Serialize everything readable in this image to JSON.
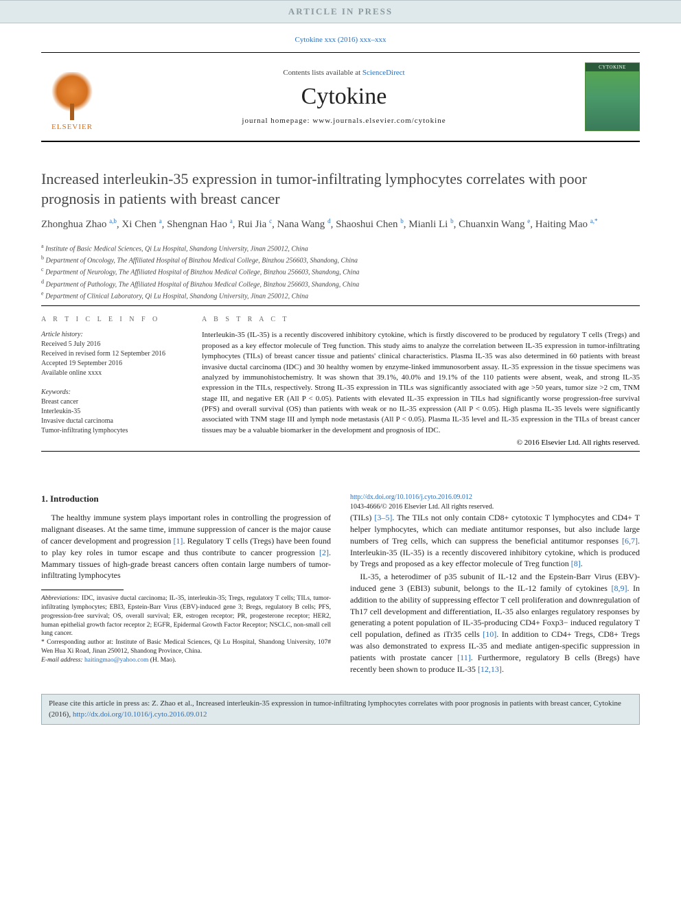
{
  "banner": {
    "in_press": "ARTICLE IN PRESS",
    "citation": "Cytokine xxx (2016) xxx–xxx"
  },
  "header": {
    "publisher_logo_text": "ELSEVIER",
    "contents_prefix": "Contents lists available at ",
    "contents_link": "ScienceDirect",
    "journal": "Cytokine",
    "homepage_label": "journal homepage: ",
    "homepage_url": "www.journals.elsevier.com/cytokine",
    "cover_title": "CYTOKINE"
  },
  "article": {
    "title": "Increased interleukin-35 expression in tumor-infiltrating lymphocytes correlates with poor prognosis in patients with breast cancer",
    "authors_html": "Zhonghua Zhao <sup>a,b</sup>, Xi Chen <sup>a</sup>, Shengnan Hao <sup>a</sup>, Rui Jia <sup>c</sup>, Nana Wang <sup>d</sup>, Shaoshui Chen <sup>b</sup>, Mianli Li <sup>b</sup>, Chuanxin Wang <sup>e</sup>, Haiting Mao <sup>a,*</sup>",
    "affiliations": [
      "a Institute of Basic Medical Sciences, Qi Lu Hospital, Shandong University, Jinan 250012, China",
      "b Department of Oncology, The Affiliated Hospital of Binzhou Medical College, Binzhou 256603, Shandong, China",
      "c Department of Neurology, The Affiliated Hospital of Binzhou Medical College, Binzhou 256603, Shandong, China",
      "d Department of Pathology, The Affiliated Hospital of Binzhou Medical College, Binzhou 256603, Shandong, China",
      "e Department of Clinical Laboratory, Qi Lu Hospital, Shandong University, Jinan 250012, China"
    ]
  },
  "info": {
    "heading": "A R T I C L E   I N F O",
    "history_label": "Article history:",
    "history_lines": [
      "Received 5 July 2016",
      "Received in revised form 12 September 2016",
      "Accepted 19 September 2016",
      "Available online xxxx"
    ],
    "keywords_label": "Keywords:",
    "keywords": [
      "Breast cancer",
      "Interleukin-35",
      "Invasive ductal carcinoma",
      "Tumor-infiltrating lymphocytes"
    ]
  },
  "abstract": {
    "heading": "A B S T R A C T",
    "text": "Interleukin-35 (IL-35) is a recently discovered inhibitory cytokine, which is firstly discovered to be produced by regulatory T cells (Tregs) and proposed as a key effector molecule of Treg function. This study aims to analyze the correlation between IL-35 expression in tumor-infiltrating lymphocytes (TILs) of breast cancer tissue and patients' clinical characteristics. Plasma IL-35 was also determined in 60 patients with breast invasive ductal carcinoma (IDC) and 30 healthy women by enzyme-linked immunosorbent assay. IL-35 expression in the tissue specimens was analyzed by immunohistochemistry. It was shown that 39.1%, 40.0% and 19.1% of the 110 patients were absent, weak, and strong IL-35 expression in the TILs, respectively. Strong IL-35 expression in TILs was significantly associated with age >50 years, tumor size >2 cm, TNM stage III, and negative ER (All P < 0.05). Patients with elevated IL-35 expression in TILs had significantly worse progression-free survival (PFS) and overall survival (OS) than patients with weak or no IL-35 expression (All P < 0.05). High plasma IL-35 levels were significantly associated with TNM stage III and lymph node metastasis (All P < 0.05). Plasma IL-35 level and IL-35 expression in the TILs of breast cancer tissues may be a valuable biomarker in the development and prognosis of IDC.",
    "copyright": "© 2016 Elsevier Ltd. All rights reserved."
  },
  "body": {
    "intro_heading": "1. Introduction",
    "p1": "The healthy immune system plays important roles in controlling the progression of malignant diseases. At the same time, immune suppression of cancer is the major cause of cancer development and progression ",
    "p1_ref1": "[1]",
    "p1b": ". Regulatory T cells (Tregs) have been found to play key roles in tumor escape and thus contribute to cancer progression ",
    "p1_ref2": "[2]",
    "p1c": ". Mammary tissues of high-grade breast cancers often contain large numbers of tumor-infiltrating lymphocytes",
    "p2a": "(TILs) ",
    "p2_ref1": "[3–5]",
    "p2b": ". The TILs not only contain CD8+ cytotoxic T lymphocytes and CD4+ T helper lymphocytes, which can mediate antitumor responses, but also include large numbers of Treg cells, which can suppress the beneficial antitumor responses ",
    "p2_ref2": "[6,7]",
    "p2c": ". Interleukin-35 (IL-35) is a recently discovered inhibitory cytokine, which is produced by Tregs and proposed as a key effector molecule of Treg function ",
    "p2_ref3": "[8]",
    "p2d": ".",
    "p3a": "IL-35, a heterodimer of p35 subunit of IL-12 and the Epstein-Barr Virus (EBV)-induced gene 3 (EBI3) subunit, belongs to the IL-12 family of cytokines ",
    "p3_ref1": "[8,9]",
    "p3b": ". In addition to the ability of suppressing effector T cell proliferation and downregulation of Th17 cell development and differentiation, IL-35 also enlarges regulatory responses by generating a potent population of IL-35-producing CD4+ Foxp3− induced regulatory T cell population, defined as iTr35 cells ",
    "p3_ref2": "[10]",
    "p3c": ". In addition to CD4+ Tregs, CD8+ Tregs was also demonstrated to express IL-35 and mediate antigen-specific suppression in patients with prostate cancer ",
    "p3_ref3": "[11]",
    "p3d": ". Furthermore, regulatory B cells (Bregs) have recently been shown to produce IL-35 ",
    "p3_ref4": "[12,13]",
    "p3e": "."
  },
  "footnotes": {
    "abbrev_label": "Abbreviations:",
    "abbrev_text": " IDC, invasive ductal carcinoma; IL-35, interleukin-35; Tregs, regulatory T cells; TILs, tumor-infiltrating lymphocytes; EBI3, Epstein-Barr Virus (EBV)-induced gene 3; Bregs, regulatory B cells; PFS, progression-free survival; OS, overall survival; ER, estrogen receptor; PR, progesterone receptor; HER2, human epithelial growth factor receptor 2; EGFR, Epidermal Growth Factor Receptor; NSCLC, non-small cell lung cancer.",
    "corr_label": "* Corresponding author at: ",
    "corr_text": "Institute of Basic Medical Sciences, Qi Lu Hospital, Shandong University, 107# Wen Hua Xi Road, Jinan 250012, Shandong Province, China.",
    "email_label": "E-mail address: ",
    "email": "haitingmao@yahoo.com",
    "email_suffix": " (H. Mao)."
  },
  "doi": {
    "url": "http://dx.doi.org/10.1016/j.cyto.2016.09.012",
    "issn_line": "1043-4666/© 2016 Elsevier Ltd. All rights reserved."
  },
  "citebox": {
    "text_a": "Please cite this article in press as: Z. Zhao et al., Increased interleukin-35 expression in tumor-infiltrating lymphocytes correlates with poor prognosis in patients with breast cancer, Cytokine (2016), ",
    "link": "http://dx.doi.org/10.1016/j.cyto.2016.09.012"
  },
  "colors": {
    "link": "#2a6ebb",
    "banner_bg": "#dfe8ea",
    "banner_text": "#8a9a9e",
    "elsevier_orange": "#d47020",
    "cover_green": "#4a9a6a"
  }
}
